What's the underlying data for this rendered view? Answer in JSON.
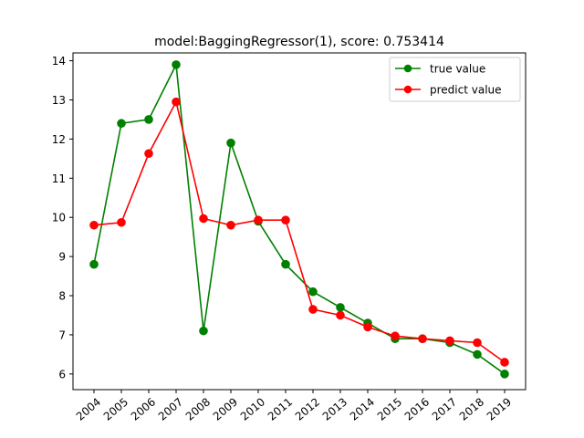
{
  "chart_data": {
    "type": "line",
    "title": "model:BaggingRegressor(1), score: 0.753414",
    "xlabel": "",
    "ylabel": "",
    "categories": [
      "2004",
      "2005",
      "2006",
      "2007",
      "2008",
      "2009",
      "2010",
      "2011",
      "2012",
      "2013",
      "2014",
      "2015",
      "2016",
      "2017",
      "2018",
      "2019"
    ],
    "ylim": [
      5.6,
      14.2
    ],
    "yticks": [
      6,
      7,
      8,
      9,
      10,
      11,
      12,
      13,
      14
    ],
    "x_tick_rotation": 40,
    "grid": false,
    "legend_position": "top-right",
    "series": [
      {
        "name": "true value",
        "color": "#008000",
        "marker": "circle",
        "values": [
          8.8,
          12.4,
          12.5,
          13.9,
          7.1,
          11.9,
          9.9,
          8.8,
          8.1,
          7.7,
          7.3,
          6.9,
          6.9,
          6.8,
          6.5,
          6.0
        ]
      },
      {
        "name": "predict value",
        "color": "#ff0000",
        "marker": "circle",
        "values": [
          9.8,
          9.87,
          11.63,
          12.95,
          9.97,
          9.8,
          9.93,
          9.93,
          7.65,
          7.5,
          7.2,
          6.97,
          6.9,
          6.85,
          6.8,
          6.3
        ]
      }
    ]
  }
}
